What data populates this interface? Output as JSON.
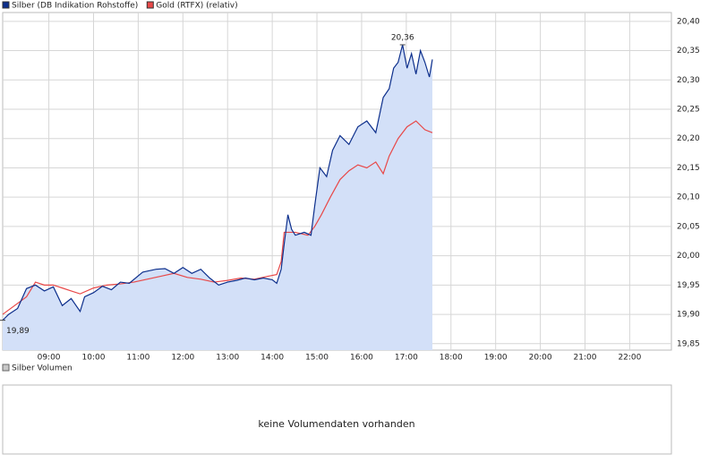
{
  "chart_data": {
    "type": "line",
    "xlim": [
      "07:58",
      "22:56"
    ],
    "xticks": [
      "09:00",
      "10:00",
      "11:00",
      "12:00",
      "13:00",
      "14:00",
      "15:00",
      "16:00",
      "17:00",
      "18:00",
      "19:00",
      "20:00",
      "21:00",
      "22:00"
    ],
    "ylim": [
      19.839,
      20.415
    ],
    "yticks": [
      {
        "value": 19.85,
        "label": "19,85"
      },
      {
        "value": 19.9,
        "label": "19,90"
      },
      {
        "value": 19.95,
        "label": "19,95"
      },
      {
        "value": 20.0,
        "label": "20,00"
      },
      {
        "value": 20.05,
        "label": "20,05"
      },
      {
        "value": 20.1,
        "label": "20,10"
      },
      {
        "value": 20.15,
        "label": "20,15"
      },
      {
        "value": 20.2,
        "label": "20,20"
      },
      {
        "value": 20.25,
        "label": "20,25"
      },
      {
        "value": 20.3,
        "label": "20,30"
      },
      {
        "value": 20.35,
        "label": "20,35"
      },
      {
        "value": 20.4,
        "label": "20,40"
      }
    ],
    "grid": true,
    "series": [
      {
        "name": "Silber (DB Indikation Rohstoffe)",
        "color": "#0d2f8c",
        "fill": "#d3e0f8",
        "x": [
          "07:58",
          "08:06",
          "08:18",
          "08:30",
          "08:42",
          "08:54",
          "09:06",
          "09:18",
          "09:30",
          "09:42",
          "09:48",
          "10:00",
          "10:12",
          "10:24",
          "10:36",
          "10:48",
          "11:06",
          "11:24",
          "11:36",
          "11:48",
          "12:00",
          "12:12",
          "12:24",
          "12:36",
          "12:48",
          "13:00",
          "13:12",
          "13:24",
          "13:36",
          "13:48",
          "14:00",
          "14:06",
          "14:12",
          "14:16",
          "14:21",
          "14:26",
          "14:31",
          "14:43",
          "14:52",
          "14:57",
          "15:04",
          "15:13",
          "15:21",
          "15:31",
          "15:43",
          "15:55",
          "16:07",
          "16:19",
          "16:29",
          "16:37",
          "16:43",
          "16:49",
          "16:55",
          "17:01",
          "17:07",
          "17:13",
          "17:19",
          "17:25",
          "17:31",
          "17:35"
        ],
        "values": [
          19.89,
          19.9,
          19.91,
          19.944,
          19.95,
          19.94,
          19.947,
          19.915,
          19.927,
          19.905,
          19.93,
          19.937,
          19.948,
          19.942,
          19.955,
          19.953,
          19.972,
          19.977,
          19.978,
          19.97,
          19.98,
          19.97,
          19.977,
          19.962,
          19.95,
          19.955,
          19.958,
          19.962,
          19.959,
          19.962,
          19.959,
          19.953,
          19.977,
          20.02,
          20.07,
          20.045,
          20.035,
          20.04,
          20.035,
          20.085,
          20.15,
          20.135,
          20.18,
          20.205,
          20.19,
          20.22,
          20.23,
          20.21,
          20.27,
          20.285,
          20.32,
          20.33,
          20.36,
          20.32,
          20.345,
          20.31,
          20.35,
          20.33,
          20.305,
          20.335
        ]
      },
      {
        "name": "Gold (RTFX) (relativ)",
        "color": "#e84848",
        "x": [
          "07:58",
          "08:30",
          "08:42",
          "08:54",
          "09:06",
          "09:18",
          "09:30",
          "09:42",
          "10:00",
          "10:18",
          "10:36",
          "10:54",
          "11:12",
          "11:30",
          "11:48",
          "12:06",
          "12:24",
          "12:42",
          "13:00",
          "13:18",
          "13:36",
          "13:54",
          "14:06",
          "14:12",
          "14:16",
          "14:31",
          "14:48",
          "14:57",
          "15:06",
          "15:18",
          "15:31",
          "15:43",
          "15:55",
          "16:07",
          "16:19",
          "16:29",
          "16:37",
          "16:49",
          "17:01",
          "17:13",
          "17:25",
          "17:35"
        ],
        "values": [
          19.9,
          19.93,
          19.955,
          19.95,
          19.95,
          19.945,
          19.94,
          19.935,
          19.945,
          19.95,
          19.952,
          19.955,
          19.96,
          19.965,
          19.97,
          19.963,
          19.96,
          19.955,
          19.958,
          19.962,
          19.96,
          19.965,
          19.968,
          19.99,
          20.04,
          20.04,
          20.035,
          20.05,
          20.07,
          20.1,
          20.13,
          20.145,
          20.155,
          20.15,
          20.16,
          20.14,
          20.17,
          20.2,
          20.22,
          20.23,
          20.215,
          20.21
        ]
      }
    ],
    "annotations": [
      {
        "x": "16:55",
        "value": 20.36,
        "label": "20,36"
      },
      {
        "x": "07:58",
        "value": 19.89,
        "label": "19,89"
      }
    ],
    "volume": {
      "legend": "Silber Volumen",
      "message": "keine Volumendaten vorhanden"
    }
  }
}
